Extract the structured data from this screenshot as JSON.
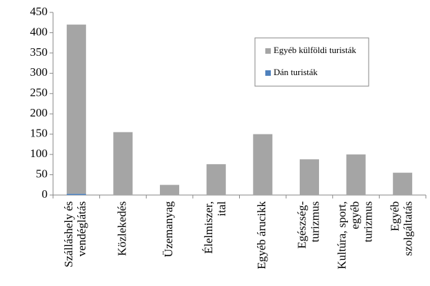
{
  "chart_data": {
    "type": "stacked-bar",
    "categories": [
      [
        "Szálláshely és",
        "vendéglátás"
      ],
      [
        "Közlekedés"
      ],
      [
        "Üzemanyag"
      ],
      [
        "Élelmiszer,",
        "ital"
      ],
      [
        "Egyéb árucikk"
      ],
      [
        "Egészség-",
        "turizmus"
      ],
      [
        "Kultúra, sport,",
        "egyéb",
        "turizmus"
      ],
      [
        "Egyéb",
        "szolgáltatás"
      ]
    ],
    "series": [
      {
        "name": "Dán turisták",
        "color": "#4f81bd",
        "values": [
          3,
          0,
          0,
          0,
          0,
          0,
          0,
          0
        ]
      },
      {
        "name": "Egyéb külföldi turisták",
        "color": "#a5a5a5",
        "values": [
          417,
          155,
          25,
          76,
          150,
          88,
          100,
          55
        ]
      }
    ],
    "ylim": [
      0,
      450
    ],
    "yticks": [
      0,
      50,
      100,
      150,
      200,
      250,
      300,
      350,
      400,
      450
    ],
    "grid": false,
    "legend": "upper-right"
  }
}
